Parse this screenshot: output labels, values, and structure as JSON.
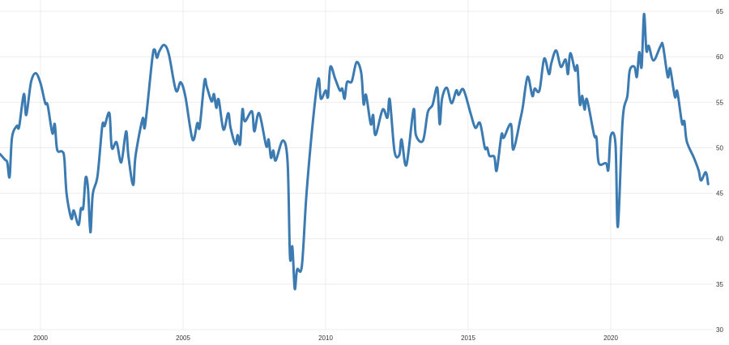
{
  "chart_data": {
    "type": "line",
    "title": "",
    "xlabel": "",
    "ylabel": "",
    "ylim": [
      30,
      65
    ],
    "xlim": [
      "1998-08",
      "2023-06"
    ],
    "y_ticks": [
      "30",
      "35",
      "40",
      "45",
      "50",
      "55",
      "60",
      "65"
    ],
    "x_ticks": [
      "2000",
      "2005",
      "2010",
      "2015",
      "2020"
    ],
    "y_axis_position": "right",
    "grid": true,
    "line_color": "#3c7bb1",
    "series": [
      {
        "points": [
          [
            "1998-08",
            49.3
          ],
          [
            "1998-10",
            48.7
          ],
          [
            "1998-11",
            48.4
          ],
          [
            "1998-12",
            46.8
          ],
          [
            "1999-01",
            51.1
          ],
          [
            "1999-03",
            52.4
          ],
          [
            "1999-04",
            52.3
          ],
          [
            "1999-06",
            55.9
          ],
          [
            "1999-07",
            53.6
          ],
          [
            "1999-09",
            57.2
          ],
          [
            "1999-11",
            58.2
          ],
          [
            "2000-01",
            57.1
          ],
          [
            "2000-03",
            54.9
          ],
          [
            "2000-04",
            54.7
          ],
          [
            "2000-06",
            51.6
          ],
          [
            "2000-07",
            52.6
          ],
          [
            "2000-08",
            49.8
          ],
          [
            "2000-10",
            49.6
          ],
          [
            "2000-11",
            48.9
          ],
          [
            "2000-12",
            44.9
          ],
          [
            "2001-02",
            42.2
          ],
          [
            "2001-03",
            43.1
          ],
          [
            "2001-05",
            41.5
          ],
          [
            "2001-06",
            43.3
          ],
          [
            "2001-07",
            43.4
          ],
          [
            "2001-08",
            46.7
          ],
          [
            "2001-09",
            45.5
          ],
          [
            "2001-10",
            40.7
          ],
          [
            "2001-11",
            44.9
          ],
          [
            "2002-01",
            46.9
          ],
          [
            "2002-03",
            52.4
          ],
          [
            "2002-04",
            52.4
          ],
          [
            "2002-06",
            53.8
          ],
          [
            "2002-07",
            50.0
          ],
          [
            "2002-09",
            50.6
          ],
          [
            "2002-11",
            48.4
          ],
          [
            "2003-01",
            51.8
          ],
          [
            "2003-02",
            49.1
          ],
          [
            "2003-04",
            45.9
          ],
          [
            "2003-05",
            49.1
          ],
          [
            "2003-08",
            53.2
          ],
          [
            "2003-09",
            52.4
          ],
          [
            "2003-12",
            59.7
          ],
          [
            "2004-01",
            60.8
          ],
          [
            "2004-02",
            59.9
          ],
          [
            "2004-03",
            60.6
          ],
          [
            "2004-05",
            61.3
          ],
          [
            "2004-07",
            60.3
          ],
          [
            "2004-10",
            56.3
          ],
          [
            "2004-12",
            57.2
          ],
          [
            "2005-02",
            55.6
          ],
          [
            "2005-05",
            50.9
          ],
          [
            "2005-07",
            52.7
          ],
          [
            "2005-08",
            52.3
          ],
          [
            "2005-10",
            57.3
          ],
          [
            "2005-11",
            56.7
          ],
          [
            "2006-01",
            55.1
          ],
          [
            "2006-02",
            55.9
          ],
          [
            "2006-03",
            54.4
          ],
          [
            "2006-04",
            55.3
          ],
          [
            "2006-06",
            52.0
          ],
          [
            "2006-08",
            53.8
          ],
          [
            "2006-09",
            52.2
          ],
          [
            "2006-11",
            50.4
          ],
          [
            "2006-12",
            51.4
          ],
          [
            "2007-01",
            50.4
          ],
          [
            "2007-02",
            54.2
          ],
          [
            "2007-03",
            52.9
          ],
          [
            "2007-06",
            54.0
          ],
          [
            "2007-07",
            51.8
          ],
          [
            "2007-09",
            53.8
          ],
          [
            "2007-12",
            50.2
          ],
          [
            "2008-01",
            50.9
          ],
          [
            "2008-02",
            48.9
          ],
          [
            "2008-03",
            49.7
          ],
          [
            "2008-04",
            48.6
          ],
          [
            "2008-07",
            50.8
          ],
          [
            "2008-09",
            48.4
          ],
          [
            "2008-10",
            38.0
          ],
          [
            "2008-11",
            39.1
          ],
          [
            "2008-12",
            34.5
          ],
          [
            "2009-01",
            36.6
          ],
          [
            "2009-03",
            37.0
          ],
          [
            "2009-05",
            45.1
          ],
          [
            "2009-08",
            53.8
          ],
          [
            "2009-10",
            57.6
          ],
          [
            "2009-11",
            55.4
          ],
          [
            "2010-01",
            56.3
          ],
          [
            "2010-02",
            55.6
          ],
          [
            "2010-03",
            58.9
          ],
          [
            "2010-05",
            57.6
          ],
          [
            "2010-07",
            56.3
          ],
          [
            "2010-08",
            56.5
          ],
          [
            "2010-09",
            55.4
          ],
          [
            "2010-10",
            57.2
          ],
          [
            "2010-12",
            57.3
          ],
          [
            "2011-02",
            59.4
          ],
          [
            "2011-04",
            58.2
          ],
          [
            "2011-05",
            54.8
          ],
          [
            "2011-06",
            55.8
          ],
          [
            "2011-08",
            52.6
          ],
          [
            "2011-09",
            53.6
          ],
          [
            "2011-10",
            51.4
          ],
          [
            "2012-01",
            54.2
          ],
          [
            "2012-03",
            53.3
          ],
          [
            "2012-04",
            55.3
          ],
          [
            "2012-06",
            49.6
          ],
          [
            "2012-08",
            49.2
          ],
          [
            "2012-09",
            50.9
          ],
          [
            "2012-11",
            48.1
          ],
          [
            "2013-02",
            54.2
          ],
          [
            "2013-03",
            51.4
          ],
          [
            "2013-06",
            50.8
          ],
          [
            "2013-08",
            53.9
          ],
          [
            "2013-10",
            54.7
          ],
          [
            "2013-12",
            56.6
          ],
          [
            "2014-01",
            52.6
          ],
          [
            "2014-02",
            55.4
          ],
          [
            "2014-04",
            56.6
          ],
          [
            "2014-06",
            54.9
          ],
          [
            "2014-08",
            56.3
          ],
          [
            "2014-09",
            55.8
          ],
          [
            "2014-11",
            56.4
          ],
          [
            "2015-02",
            53.8
          ],
          [
            "2015-04",
            52.2
          ],
          [
            "2015-06",
            52.7
          ],
          [
            "2015-08",
            50.0
          ],
          [
            "2015-09",
            50.0
          ],
          [
            "2015-10",
            49.1
          ],
          [
            "2015-12",
            49.0
          ],
          [
            "2016-01",
            47.5
          ],
          [
            "2016-03",
            51.4
          ],
          [
            "2016-04",
            51.1
          ],
          [
            "2016-07",
            52.6
          ],
          [
            "2016-08",
            49.8
          ],
          [
            "2016-11",
            53.2
          ],
          [
            "2016-12",
            54.5
          ],
          [
            "2017-02",
            57.8
          ],
          [
            "2017-04",
            55.7
          ],
          [
            "2017-05",
            56.5
          ],
          [
            "2017-07",
            56.3
          ],
          [
            "2017-09",
            59.8
          ],
          [
            "2017-11",
            58.1
          ],
          [
            "2017-12",
            59.3
          ],
          [
            "2018-02",
            60.7
          ],
          [
            "2018-04",
            58.9
          ],
          [
            "2018-06",
            59.7
          ],
          [
            "2018-07",
            58.1
          ],
          [
            "2018-08",
            60.4
          ],
          [
            "2018-10",
            58.5
          ],
          [
            "2018-11",
            58.9
          ],
          [
            "2018-12",
            54.8
          ],
          [
            "2019-01",
            55.7
          ],
          [
            "2019-02",
            54.2
          ],
          [
            "2019-03",
            55.3
          ],
          [
            "2019-06",
            51.4
          ],
          [
            "2019-07",
            51.1
          ],
          [
            "2019-08",
            48.3
          ],
          [
            "2019-11",
            48.3
          ],
          [
            "2019-12",
            47.6
          ],
          [
            "2020-01",
            51.3
          ],
          [
            "2020-03",
            50.4
          ],
          [
            "2020-04",
            41.3
          ],
          [
            "2020-06",
            53.0
          ],
          [
            "2020-08",
            55.7
          ],
          [
            "2020-09",
            58.5
          ],
          [
            "2020-11",
            58.9
          ],
          [
            "2020-12",
            57.8
          ],
          [
            "2021-01",
            60.5
          ],
          [
            "2021-02",
            58.9
          ],
          [
            "2021-03",
            64.7
          ],
          [
            "2021-04",
            60.7
          ],
          [
            "2021-05",
            61.2
          ],
          [
            "2021-07",
            59.6
          ],
          [
            "2021-10",
            61.2
          ],
          [
            "2021-11",
            61.2
          ],
          [
            "2022-01",
            57.8
          ],
          [
            "2022-02",
            58.7
          ],
          [
            "2022-04",
            55.6
          ],
          [
            "2022-05",
            56.2
          ],
          [
            "2022-07",
            52.7
          ],
          [
            "2022-08",
            52.9
          ],
          [
            "2022-09",
            50.7
          ],
          [
            "2022-12",
            48.9
          ],
          [
            "2023-02",
            47.5
          ],
          [
            "2023-03",
            46.4
          ],
          [
            "2023-05",
            47.3
          ],
          [
            "2023-06",
            46.0
          ]
        ]
      }
    ]
  }
}
